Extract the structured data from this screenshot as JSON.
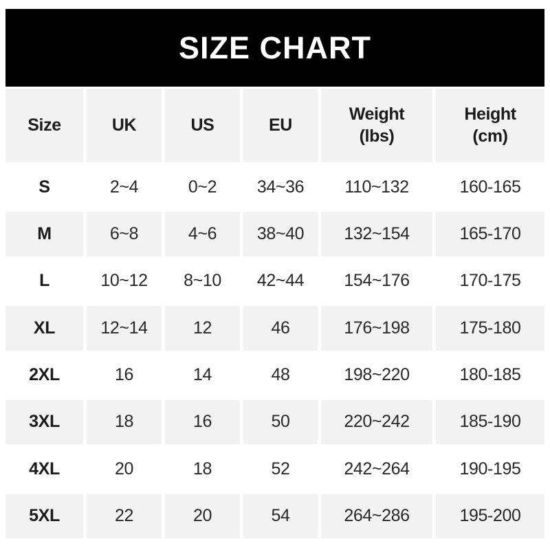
{
  "banner": {
    "title": "SIZE CHART",
    "background": "#000000",
    "text_color": "#ffffff"
  },
  "table": {
    "columns_display": [
      {
        "line1": "Size",
        "line2": ""
      },
      {
        "line1": "UK",
        "line2": ""
      },
      {
        "line1": "US",
        "line2": ""
      },
      {
        "line1": "EU",
        "line2": ""
      },
      {
        "line1": "Weight",
        "line2": "(lbs)"
      },
      {
        "line1": "Height",
        "line2": "(cm)"
      }
    ],
    "stripe_color": "#f2f2f2",
    "text_color": "#282828"
  },
  "chart_data": {
    "type": "table",
    "title": "SIZE CHART",
    "columns": [
      "Size",
      "UK",
      "US",
      "EU",
      "Weight (lbs)",
      "Height (cm)"
    ],
    "rows": [
      [
        "S",
        "2~4",
        "0~2",
        "34~36",
        "110~132",
        "160-165"
      ],
      [
        "M",
        "6~8",
        "4~6",
        "38~40",
        "132~154",
        "165-170"
      ],
      [
        "L",
        "10~12",
        "8~10",
        "42~44",
        "154~176",
        "170-175"
      ],
      [
        "XL",
        "12~14",
        "12",
        "46",
        "176~198",
        "175-180"
      ],
      [
        "2XL",
        "16",
        "14",
        "48",
        "198~220",
        "180-185"
      ],
      [
        "3XL",
        "18",
        "16",
        "50",
        "220~242",
        "185-190"
      ],
      [
        "4XL",
        "20",
        "18",
        "52",
        "242~264",
        "190-195"
      ],
      [
        "5XL",
        "22",
        "20",
        "54",
        "264~286",
        "195-200"
      ]
    ]
  }
}
